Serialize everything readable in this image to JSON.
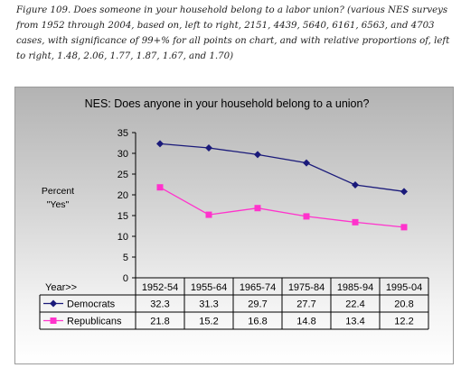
{
  "caption": "Figure 109. Does someone in your household belong to a labor union? (various NES surveys from 1952 through 2004, based on, left to right, 2151, 4439, 5640, 6161, 6563, and 4703 cases, with significance of 99+% for all points on chart, and with relative proportions of, left to right, 1.48, 2.06, 1.77, 1.87, 1.67, and 1.70)",
  "chart_data": {
    "type": "line",
    "title": "NES:  Does anyone in your household belong to a union?",
    "ylabel_line1": "Percent",
    "ylabel_line2": "\"Yes\"",
    "table_header": "Year>>",
    "categories": [
      "1952-54",
      "1955-64",
      "1965-74",
      "1975-84",
      "1985-94",
      "1995-04"
    ],
    "ylim": [
      0,
      35
    ],
    "yticks": [
      "0",
      "5",
      "10",
      "15",
      "20",
      "25",
      "30",
      "35"
    ],
    "grid": false,
    "legend_placement": "data table below the plot",
    "series": [
      {
        "name": "Democrats",
        "color": "#1a1a7a",
        "marker": "diamond",
        "values": [
          32.3,
          31.3,
          29.7,
          27.7,
          22.4,
          20.8
        ],
        "labels": [
          "32.3",
          "31.3",
          "29.7",
          "27.7",
          "22.4",
          "20.8"
        ]
      },
      {
        "name": "Republicans",
        "color": "#ff33cc",
        "marker": "square",
        "values": [
          21.8,
          15.2,
          16.8,
          14.8,
          13.4,
          12.2
        ],
        "labels": [
          "21.8",
          "15.2",
          "16.8",
          "14.8",
          "13.4",
          "12.2"
        ]
      }
    ]
  }
}
